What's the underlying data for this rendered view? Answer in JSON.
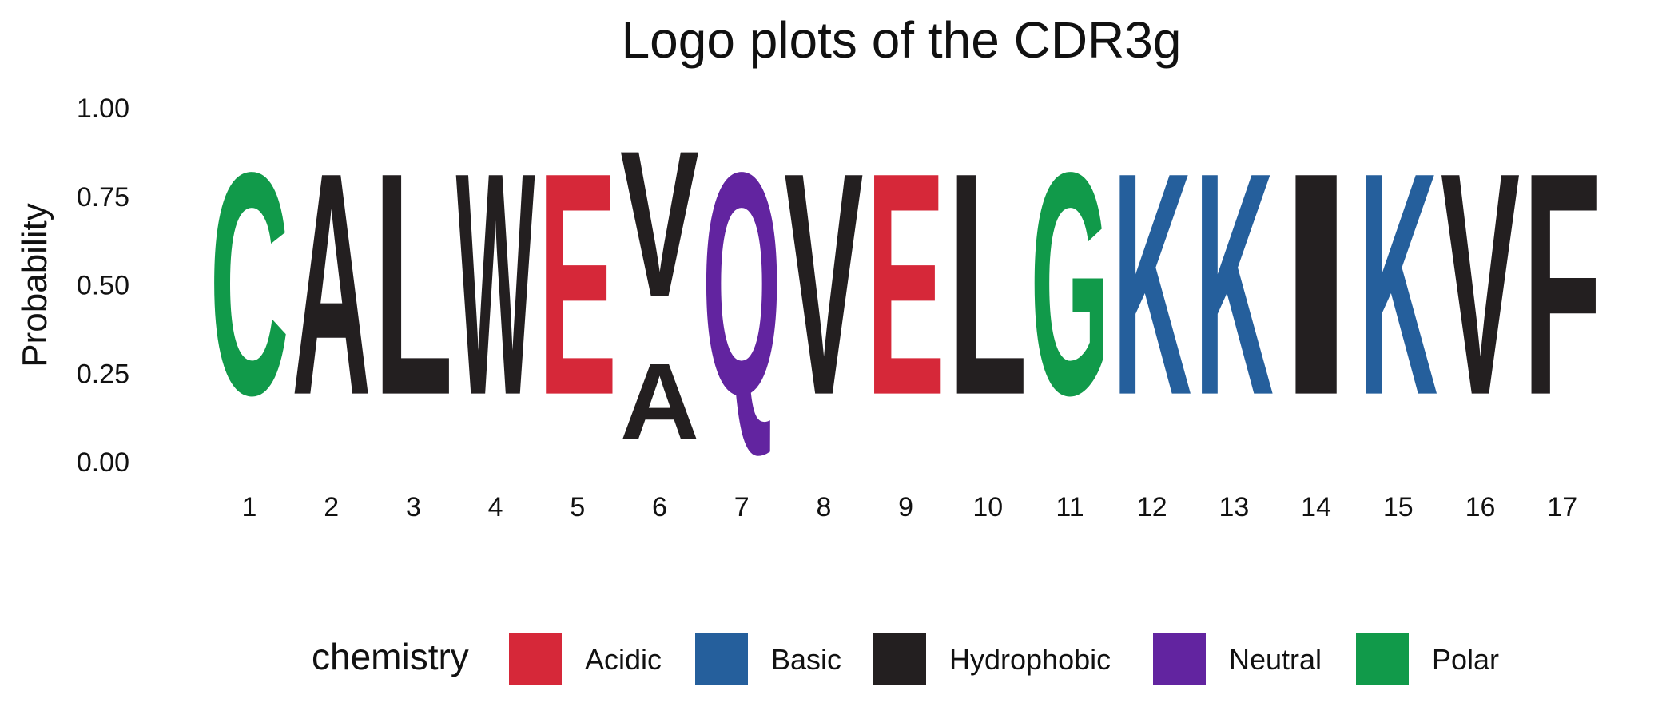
{
  "chart_data": {
    "type": "sequence-logo",
    "title": "Logo plots of the CDR3g",
    "ylabel": "Probability",
    "xlabel": "",
    "ylim": [
      0,
      1
    ],
    "yticks": [
      "0.00",
      "0.25",
      "0.50",
      "0.75",
      "1.00"
    ],
    "grid": false,
    "legend": {
      "title": "chemistry",
      "position": "bottom",
      "entries": [
        {
          "name": "Acidic",
          "color": "#d62839"
        },
        {
          "name": "Basic",
          "color": "#255f9c"
        },
        {
          "name": "Hydrophobic",
          "color": "#231f20"
        },
        {
          "name": "Neutral",
          "color": "#6224a0"
        },
        {
          "name": "Polar",
          "color": "#119a4a"
        }
      ]
    },
    "positions": [
      {
        "position": "1",
        "letters": [
          {
            "letter": "C",
            "chemistry": "Polar",
            "probability": 1.0
          }
        ]
      },
      {
        "position": "2",
        "letters": [
          {
            "letter": "A",
            "chemistry": "Hydrophobic",
            "probability": 1.0
          }
        ]
      },
      {
        "position": "3",
        "letters": [
          {
            "letter": "L",
            "chemistry": "Hydrophobic",
            "probability": 1.0
          }
        ]
      },
      {
        "position": "4",
        "letters": [
          {
            "letter": "W",
            "chemistry": "Hydrophobic",
            "probability": 1.0
          }
        ]
      },
      {
        "position": "5",
        "letters": [
          {
            "letter": "E",
            "chemistry": "Acidic",
            "probability": 1.0
          }
        ]
      },
      {
        "position": "6",
        "letters": [
          {
            "letter": "A",
            "chemistry": "Hydrophobic",
            "probability": 0.34
          },
          {
            "letter": "V",
            "chemistry": "Hydrophobic",
            "probability": 0.66
          }
        ]
      },
      {
        "position": "7",
        "letters": [
          {
            "letter": "Q",
            "chemistry": "Neutral",
            "probability": 1.0
          }
        ]
      },
      {
        "position": "8",
        "letters": [
          {
            "letter": "V",
            "chemistry": "Hydrophobic",
            "probability": 1.0
          }
        ]
      },
      {
        "position": "9",
        "letters": [
          {
            "letter": "E",
            "chemistry": "Acidic",
            "probability": 1.0
          }
        ]
      },
      {
        "position": "10",
        "letters": [
          {
            "letter": "L",
            "chemistry": "Hydrophobic",
            "probability": 1.0
          }
        ]
      },
      {
        "position": "11",
        "letters": [
          {
            "letter": "G",
            "chemistry": "Polar",
            "probability": 1.0
          }
        ]
      },
      {
        "position": "12",
        "letters": [
          {
            "letter": "K",
            "chemistry": "Basic",
            "probability": 1.0
          }
        ]
      },
      {
        "position": "13",
        "letters": [
          {
            "letter": "K",
            "chemistry": "Basic",
            "probability": 1.0
          }
        ]
      },
      {
        "position": "14",
        "letters": [
          {
            "letter": "I",
            "chemistry": "Hydrophobic",
            "probability": 1.0
          }
        ]
      },
      {
        "position": "15",
        "letters": [
          {
            "letter": "K",
            "chemistry": "Basic",
            "probability": 1.0
          }
        ]
      },
      {
        "position": "16",
        "letters": [
          {
            "letter": "V",
            "chemistry": "Hydrophobic",
            "probability": 1.0
          }
        ]
      },
      {
        "position": "17",
        "letters": [
          {
            "letter": "F",
            "chemistry": "Hydrophobic",
            "probability": 1.0
          }
        ]
      }
    ]
  }
}
